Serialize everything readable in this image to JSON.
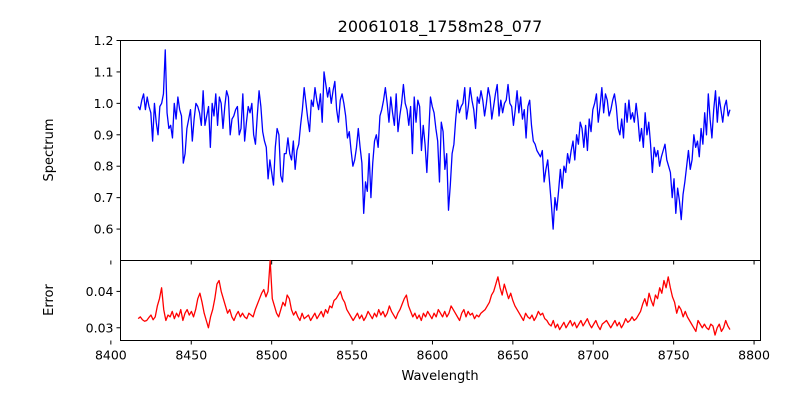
{
  "chart_data": [
    {
      "type": "line",
      "title": "20061018_1758m28_077",
      "xlabel": "",
      "ylabel": "Spectrum",
      "xlim": [
        8406,
        8804
      ],
      "ylim": [
        0.5,
        1.2
      ],
      "xticks": [
        8400,
        8450,
        8500,
        8550,
        8600,
        8650,
        8700,
        8750,
        8800
      ],
      "yticks": [
        0.6,
        0.7,
        0.8,
        0.9,
        1.0,
        1.1,
        1.2
      ],
      "ytick_labels": [
        "0.6",
        "0.7",
        "0.8",
        "0.9",
        "1.0",
        "1.1",
        "1.2"
      ],
      "grid": false,
      "color": "#0000ff",
      "x_start": 8417,
      "x_end": 8785,
      "series": [
        {
          "values": [
            0.99,
            0.98,
            1.01,
            1.03,
            0.98,
            1.02,
            0.99,
            0.97,
            0.88,
            1.0,
            0.94,
            0.9,
            0.99,
            1.0,
            1.03,
            1.17,
            0.97,
            0.92,
            0.93,
            0.89,
            1.0,
            0.95,
            1.02,
            0.98,
            0.96,
            0.81,
            0.84,
            0.92,
            0.95,
            0.98,
            0.88,
            0.95,
            1.0,
            0.99,
            0.97,
            0.93,
            1.04,
            0.93,
            0.96,
            0.99,
            0.86,
            1.0,
            0.96,
            1.03,
            0.93,
            1.02,
            1.0,
            0.92,
            0.99,
            1.04,
            1.02,
            0.9,
            0.95,
            0.96,
            0.98,
            0.99,
            0.9,
            0.92,
            1.03,
            0.88,
            0.94,
            0.99,
            0.97,
            1.0,
            0.9,
            0.87,
            0.96,
            1.04,
            0.99,
            0.91,
            0.88,
            0.86,
            0.76,
            0.82,
            0.78,
            0.74,
            0.86,
            0.92,
            0.9,
            0.77,
            0.75,
            0.84,
            0.84,
            0.89,
            0.84,
            0.82,
            0.88,
            0.79,
            0.85,
            0.87,
            0.93,
            0.98,
            1.05,
            1.0,
            0.95,
            0.91,
            1.01,
            0.99,
            1.05,
            1.01,
            0.98,
            1.03,
            0.94,
            1.1,
            1.06,
            1.02,
            1.05,
            1.0,
            1.04,
            1.07,
            0.98,
            0.94,
            1.01,
            1.03,
            1.0,
            0.96,
            0.89,
            0.91,
            0.85,
            0.8,
            0.82,
            0.86,
            0.92,
            0.86,
            0.81,
            0.65,
            0.75,
            0.72,
            0.84,
            0.7,
            0.81,
            0.88,
            0.9,
            0.86,
            0.96,
            0.98,
            1.01,
            1.05,
            1.0,
            0.94,
            1.02,
            0.97,
            0.93,
            1.03,
            0.91,
            0.96,
            1.0,
            1.06,
            1.0,
            0.98,
            0.93,
            0.99,
            0.84,
            1.02,
            0.94,
            1.01,
            0.99,
            0.85,
            0.93,
            0.87,
            0.78,
            0.9,
            1.02,
            0.99,
            0.97,
            0.92,
            0.88,
            0.75,
            0.94,
            0.91,
            0.79,
            0.84,
            0.66,
            0.74,
            0.84,
            0.87,
            0.95,
            1.01,
            0.97,
            0.99,
            1.0,
            1.05,
            0.95,
            0.99,
            1.05,
            1.01,
            0.98,
            0.92,
            1.02,
            1.0,
            1.04,
            1.01,
            0.96,
            1.0,
            1.05,
            1.02,
            0.95,
            0.99,
            1.03,
            1.06,
            0.96,
            1.01,
            0.97,
            1.0,
            1.01,
            1.06,
            1.0,
            0.99,
            0.93,
            0.98,
            1.04,
            0.97,
            1.02,
            0.95,
            0.98,
            0.89,
            0.99,
            1.01,
            0.93,
            0.88,
            0.87,
            0.85,
            0.84,
            0.83,
            0.85,
            0.75,
            0.79,
            0.82,
            0.75,
            0.68,
            0.6,
            0.7,
            0.66,
            0.72,
            0.79,
            0.73,
            0.8,
            0.78,
            0.84,
            0.81,
            0.85,
            0.88,
            0.82,
            0.9,
            0.87,
            0.94,
            0.92,
            0.86,
            0.93,
            0.85,
            0.95,
            0.91,
            0.98,
            1.0,
            1.03,
            0.94,
            0.99,
            1.05,
            0.97,
            1.03,
            1.01,
            0.96,
            0.98,
            1.01,
            1.03,
            0.99,
            0.92,
            0.9,
            0.95,
            0.89,
            1.0,
            0.94,
            1.01,
            0.95,
            0.97,
            0.94,
            1.0,
            0.95,
            0.88,
            0.92,
            0.86,
            0.97,
            0.9,
            0.94,
            0.87,
            0.78,
            0.86,
            0.83,
            0.85,
            0.8,
            0.83,
            0.85,
            0.87,
            0.82,
            0.8,
            0.78,
            0.7,
            0.76,
            0.65,
            0.73,
            0.69,
            0.63,
            0.71,
            0.75,
            0.8,
            0.85,
            0.79,
            0.82,
            0.9,
            0.86,
            0.88,
            0.83,
            0.92,
            0.87,
            0.97,
            0.9,
            1.03,
            0.95,
            0.89,
            0.98,
            1.04,
            0.94,
            1.02,
            0.98,
            0.94,
            0.99,
            1.01,
            0.96,
            0.98
          ]
        }
      ]
    },
    {
      "type": "line",
      "title": "",
      "xlabel": "Wavelength",
      "ylabel": "Error",
      "xlim": [
        8406,
        8804
      ],
      "ylim": [
        0.0265,
        0.0485
      ],
      "xticks": [
        8400,
        8450,
        8500,
        8550,
        8600,
        8650,
        8700,
        8750,
        8800
      ],
      "yticks": [
        0.03,
        0.04
      ],
      "ytick_labels": [
        "0.03",
        "0.04"
      ],
      "grid": false,
      "color": "#ff0000",
      "x_start": 8417,
      "x_end": 8785,
      "series": [
        {
          "values": [
            0.0325,
            0.033,
            0.0322,
            0.0318,
            0.032,
            0.0328,
            0.0335,
            0.0322,
            0.033,
            0.036,
            0.038,
            0.041,
            0.035,
            0.032,
            0.0335,
            0.033,
            0.0345,
            0.0325,
            0.034,
            0.033,
            0.035,
            0.032,
            0.034,
            0.035,
            0.0335,
            0.0345,
            0.033,
            0.035,
            0.038,
            0.0395,
            0.037,
            0.034,
            0.032,
            0.03,
            0.033,
            0.035,
            0.038,
            0.042,
            0.043,
            0.04,
            0.038,
            0.036,
            0.034,
            0.035,
            0.033,
            0.032,
            0.0335,
            0.0345,
            0.033,
            0.034,
            0.033,
            0.0325,
            0.034,
            0.0335,
            0.033,
            0.035,
            0.0365,
            0.038,
            0.0395,
            0.0405,
            0.0385,
            0.04,
            0.0485,
            0.038,
            0.036,
            0.034,
            0.033,
            0.035,
            0.037,
            0.036,
            0.039,
            0.038,
            0.035,
            0.0335,
            0.0345,
            0.033,
            0.032,
            0.034,
            0.0325,
            0.033,
            0.0335,
            0.032,
            0.033,
            0.034,
            0.0325,
            0.0335,
            0.0345,
            0.033,
            0.035,
            0.034,
            0.036,
            0.0355,
            0.0375,
            0.038,
            0.039,
            0.04,
            0.038,
            0.037,
            0.035,
            0.034,
            0.033,
            0.032,
            0.033,
            0.034,
            0.0325,
            0.0335,
            0.032,
            0.033,
            0.0345,
            0.0335,
            0.0325,
            0.034,
            0.033,
            0.035,
            0.0335,
            0.0345,
            0.033,
            0.034,
            0.036,
            0.0345,
            0.0335,
            0.0325,
            0.034,
            0.035,
            0.0365,
            0.038,
            0.039,
            0.036,
            0.0345,
            0.033,
            0.034,
            0.0325,
            0.0335,
            0.032,
            0.034,
            0.033,
            0.0345,
            0.0335,
            0.0325,
            0.034,
            0.033,
            0.035,
            0.034,
            0.033,
            0.0345,
            0.033,
            0.034,
            0.036,
            0.035,
            0.034,
            0.033,
            0.032,
            0.034,
            0.035,
            0.033,
            0.0345,
            0.0335,
            0.034,
            0.0325,
            0.0335,
            0.033,
            0.034,
            0.0345,
            0.035,
            0.036,
            0.037,
            0.039,
            0.04,
            0.042,
            0.044,
            0.041,
            0.039,
            0.042,
            0.04,
            0.038,
            0.0395,
            0.0375,
            0.036,
            0.035,
            0.034,
            0.033,
            0.032,
            0.034,
            0.033,
            0.0325,
            0.0335,
            0.032,
            0.033,
            0.0345,
            0.0335,
            0.034,
            0.0325,
            0.032,
            0.031,
            0.0305,
            0.032,
            0.03,
            0.031,
            0.0295,
            0.0305,
            0.0315,
            0.03,
            0.031,
            0.032,
            0.0305,
            0.0315,
            0.03,
            0.031,
            0.032,
            0.0305,
            0.0315,
            0.0325,
            0.031,
            0.03,
            0.031,
            0.032,
            0.0305,
            0.0295,
            0.031,
            0.0315,
            0.032,
            0.031,
            0.03,
            0.031,
            0.032,
            0.0305,
            0.0315,
            0.03,
            0.031,
            0.0325,
            0.0315,
            0.032,
            0.033,
            0.032,
            0.0325,
            0.0335,
            0.0345,
            0.0365,
            0.038,
            0.036,
            0.0395,
            0.0375,
            0.036,
            0.039,
            0.038,
            0.041,
            0.0395,
            0.043,
            0.041,
            0.044,
            0.041,
            0.0385,
            0.037,
            0.034,
            0.036,
            0.035,
            0.033,
            0.0345,
            0.033,
            0.032,
            0.031,
            0.03,
            0.029,
            0.032,
            0.031,
            0.03,
            0.031,
            0.03,
            0.0295,
            0.031,
            0.0305,
            0.028,
            0.03,
            0.031,
            0.029,
            0.03,
            0.032,
            0.0305,
            0.0295
          ]
        }
      ]
    }
  ]
}
